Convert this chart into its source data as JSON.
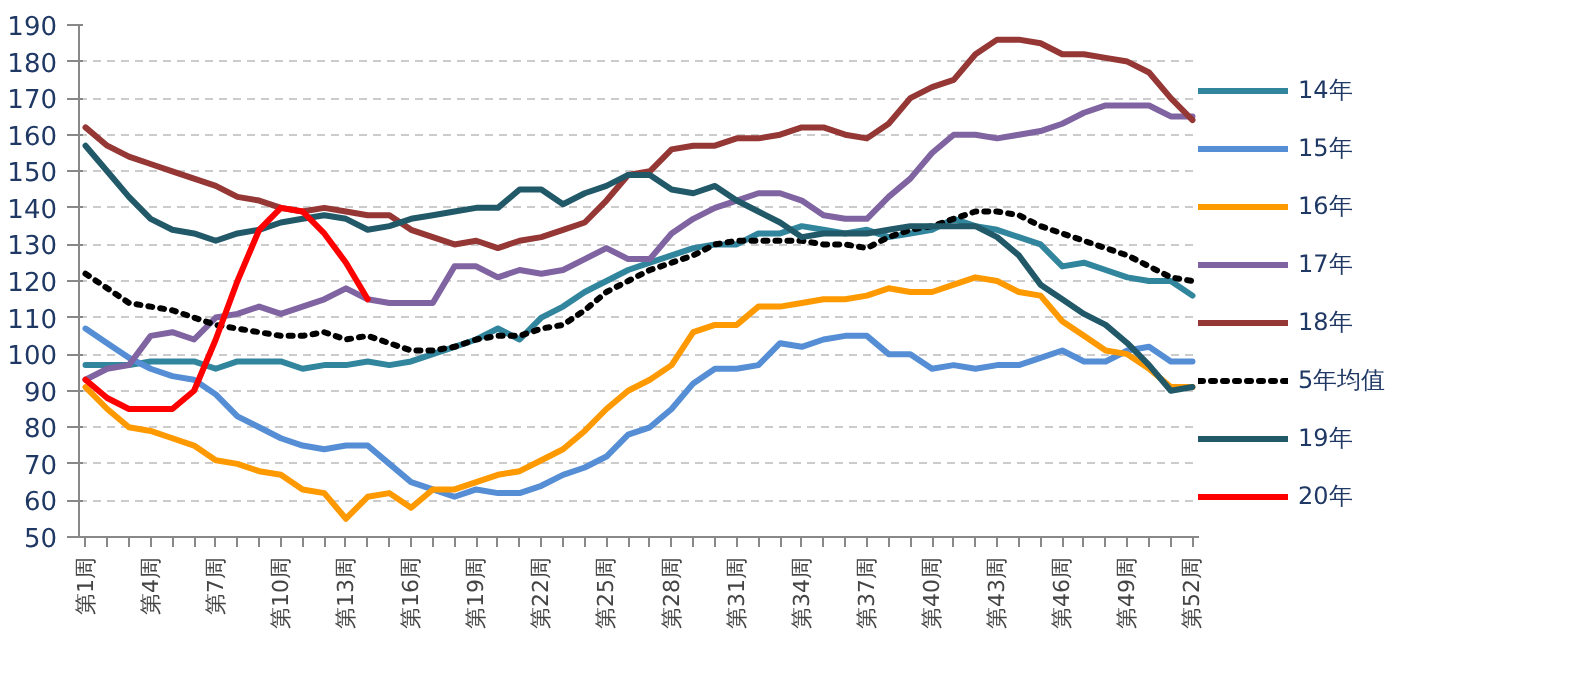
{
  "chart_data": {
    "type": "line",
    "categories": [
      "第1周",
      null,
      null,
      "第4周",
      null,
      null,
      "第7周",
      null,
      null,
      "第10周",
      null,
      null,
      "第13周",
      null,
      null,
      "第16周",
      null,
      null,
      "第19周",
      null,
      null,
      "第22周",
      null,
      null,
      "第25周",
      null,
      null,
      "第28周",
      null,
      null,
      "第31周",
      null,
      null,
      "第34周",
      null,
      null,
      "第37周",
      null,
      null,
      "第40周",
      null,
      null,
      "第43周",
      null,
      null,
      "第46周",
      null,
      null,
      "第49周",
      null,
      null,
      "第52周"
    ],
    "ylim": [
      50,
      190
    ],
    "yticks": [
      50,
      60,
      70,
      80,
      90,
      100,
      110,
      120,
      130,
      140,
      150,
      160,
      170,
      180,
      190
    ],
    "grid": "y",
    "legend": "right",
    "line_style": "solid",
    "marker": "none",
    "series": [
      {
        "name": "14年",
        "color": "#31859c",
        "values": [
          97,
          97,
          97,
          98,
          98,
          98,
          96,
          98,
          98,
          98,
          96,
          97,
          97,
          98,
          97,
          98,
          100,
          102,
          104,
          107,
          104,
          110,
          113,
          117,
          120,
          123,
          125,
          127,
          129,
          130,
          130,
          133,
          133,
          135,
          134,
          133,
          134,
          132,
          133,
          134,
          137,
          135,
          134,
          132,
          130,
          124,
          125,
          123,
          121,
          120,
          120,
          116
        ]
      },
      {
        "name": "15年",
        "color": "#558ed5",
        "values": [
          107,
          103,
          99,
          96,
          94,
          93,
          89,
          83,
          80,
          77,
          75,
          74,
          75,
          75,
          70,
          65,
          63,
          61,
          63,
          62,
          62,
          64,
          67,
          69,
          72,
          78,
          80,
          85,
          92,
          96,
          96,
          97,
          103,
          102,
          104,
          105,
          105,
          100,
          100,
          96,
          97,
          96,
          97,
          97,
          99,
          101,
          98,
          98,
          101,
          102,
          98,
          98
        ]
      },
      {
        "name": "16年",
        "color": "#ff9900",
        "values": [
          91,
          85,
          80,
          79,
          77,
          75,
          71,
          70,
          68,
          67,
          63,
          62,
          55,
          61,
          62,
          58,
          63,
          63,
          65,
          67,
          68,
          71,
          74,
          79,
          85,
          90,
          93,
          97,
          106,
          108,
          108,
          113,
          113,
          114,
          115,
          115,
          116,
          118,
          117,
          117,
          119,
          121,
          120,
          117,
          116,
          109,
          105,
          101,
          100,
          96,
          91,
          91
        ]
      },
      {
        "name": "17年",
        "color": "#8064a2",
        "values": [
          93,
          96,
          97,
          105,
          106,
          104,
          110,
          111,
          113,
          111,
          113,
          115,
          118,
          115,
          114,
          114,
          114,
          124,
          124,
          121,
          123,
          122,
          123,
          126,
          129,
          126,
          126,
          133,
          137,
          140,
          142,
          144,
          144,
          142,
          138,
          137,
          137,
          143,
          148,
          155,
          160,
          160,
          159,
          160,
          161,
          163,
          166,
          168,
          168,
          168,
          165,
          165
        ]
      },
      {
        "name": "18年",
        "color": "#953735",
        "values": [
          162,
          157,
          154,
          152,
          150,
          148,
          146,
          143,
          142,
          140,
          139,
          140,
          139,
          138,
          138,
          134,
          132,
          130,
          131,
          129,
          131,
          132,
          134,
          136,
          142,
          149,
          150,
          156,
          157,
          157,
          159,
          159,
          160,
          162,
          162,
          160,
          159,
          163,
          170,
          173,
          175,
          182,
          186,
          186,
          185,
          182,
          182,
          181,
          180,
          177,
          170,
          164
        ]
      },
      {
        "name": "5年均值",
        "color": "#000000",
        "line_style": "dotted",
        "values": [
          122,
          118,
          114,
          113,
          112,
          110,
          108,
          107,
          106,
          105,
          105,
          106,
          104,
          105,
          103,
          101,
          101,
          102,
          104,
          105,
          105,
          107,
          108,
          112,
          117,
          120,
          123,
          125,
          127,
          130,
          131,
          131,
          131,
          131,
          130,
          130,
          129,
          132,
          134,
          135,
          137,
          139,
          139,
          138,
          135,
          133,
          131,
          129,
          127,
          124,
          121,
          120
        ]
      },
      {
        "name": "19年",
        "color": "#215968",
        "values": [
          157,
          150,
          143,
          137,
          134,
          133,
          131,
          133,
          134,
          136,
          137,
          138,
          137,
          134,
          135,
          137,
          138,
          139,
          140,
          140,
          145,
          145,
          141,
          144,
          146,
          149,
          149,
          145,
          144,
          146,
          142,
          139,
          136,
          132,
          133,
          133,
          133,
          134,
          135,
          135,
          135,
          135,
          132,
          127,
          119,
          115,
          111,
          108,
          103,
          97,
          90,
          91
        ]
      },
      {
        "name": "20年",
        "color": "#ff0000",
        "values": [
          93,
          88,
          85,
          85,
          85,
          90,
          104,
          120,
          134,
          140,
          139,
          133,
          125,
          115,
          null,
          null,
          null,
          null,
          null,
          null,
          null,
          null,
          null,
          null,
          null,
          null,
          null,
          null,
          null,
          null,
          null,
          null,
          null,
          null,
          null,
          null,
          null,
          null,
          null,
          null,
          null,
          null,
          null,
          null,
          null,
          null,
          null,
          null,
          null,
          null,
          null,
          null
        ]
      }
    ]
  }
}
